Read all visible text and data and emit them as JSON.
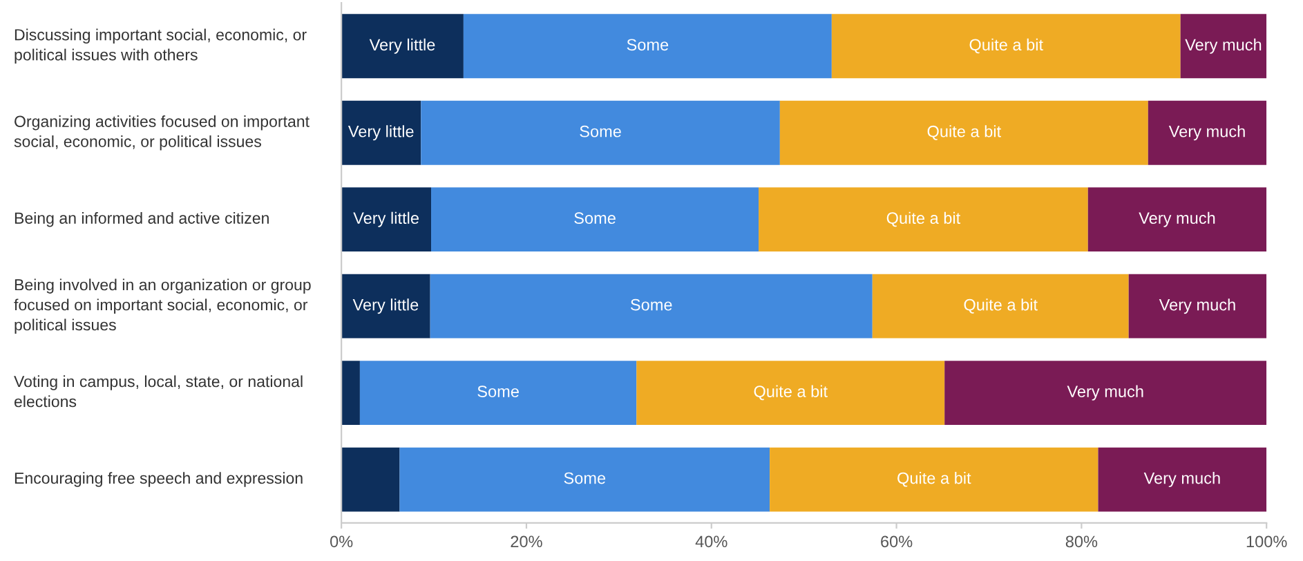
{
  "chart_data": {
    "type": "bar",
    "orientation": "horizontal",
    "stacked": true,
    "categories": [
      "Discussing important social, economic, or\npolitical issues with others",
      "Organizing activities focused on important\nsocial, economic, or political issues",
      "Being an informed and active citizen",
      "Being involved in an organization or group\nfocused on important social, economic, or\npolitical issues",
      "Voting in campus, local, state, or national\nelections",
      "Encouraging free speech and expression"
    ],
    "series": [
      {
        "name": "Very little",
        "color": "#0d2f5c",
        "values": [
          13.2,
          8.6,
          9.7,
          9.6,
          2.0,
          6.3
        ]
      },
      {
        "name": "Some",
        "color": "#428ade",
        "values": [
          39.8,
          38.8,
          35.4,
          47.8,
          29.9,
          40.0
        ]
      },
      {
        "name": "Quite a bit",
        "color": "#efab24",
        "values": [
          37.7,
          39.8,
          35.6,
          27.7,
          33.3,
          35.5
        ]
      },
      {
        "name": "Very much",
        "color": "#7a1b55",
        "values": [
          9.3,
          12.8,
          19.3,
          14.9,
          34.8,
          18.2
        ]
      }
    ],
    "xlim": [
      0,
      100
    ],
    "xticks": [
      {
        "value": 0,
        "label": "0%"
      },
      {
        "value": 20,
        "label": "20%"
      },
      {
        "value": 40,
        "label": "40%"
      },
      {
        "value": 60,
        "label": "60%"
      },
      {
        "value": 80,
        "label": "80%"
      },
      {
        "value": 100,
        "label": "100%"
      }
    ],
    "grid": false,
    "legend": false
  }
}
